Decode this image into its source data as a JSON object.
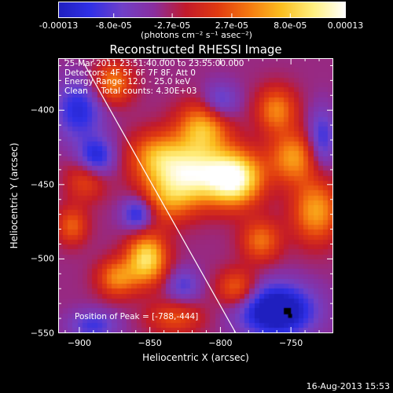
{
  "colorbar": {
    "tick_labels": [
      "-0.00013",
      "-8.0e-05",
      "-2.7e-05",
      "2.7e-05",
      "8.0e-05",
      "0.00013"
    ],
    "tick_values": [
      -0.00013,
      -8e-05,
      -2.7e-05,
      2.7e-05,
      8e-05,
      0.00013
    ],
    "units_label": "(photons cm⁻² s⁻¹ asec⁻²)",
    "colors": [
      "#1f1fbf",
      "#3030e6",
      "#7040c8",
      "#8a2e9e",
      "#c21a2a",
      "#e03a10",
      "#f57a10",
      "#fbbf20",
      "#fff080",
      "#ffffff"
    ]
  },
  "chart_data": {
    "type": "heatmap",
    "title": "Reconstructed RHESSI Image",
    "xlabel": "Heliocentric X (arcsec)",
    "ylabel": "Heliocentric Y (arcsec)",
    "xlim": [
      -915,
      -720
    ],
    "ylim": [
      -550,
      -365
    ],
    "x_ticks": [
      -900,
      -850,
      -800,
      -750
    ],
    "y_ticks": [
      -400,
      -450,
      -500,
      -550
    ],
    "x_tick_labels": [
      "−900",
      "−850",
      "−800",
      "−750"
    ],
    "y_tick_labels": [
      "−400",
      "−450",
      "−500",
      "−550"
    ],
    "info_lines": [
      "25-Mar-2011 23:51:40.000 to 23:55:00.000",
      "Detectors: 4F 5F 6F 7F 8F, Att 0",
      "Energy Range: 12.0 - 25.0 keV",
      "Clean     Total counts: 4.30E+03"
    ],
    "peak_label": "Position of Peak = [-788,-444]",
    "peak_position": [
      -788,
      -444
    ],
    "limb_line": [
      [
        -897,
        -368
      ],
      [
        -789,
        -550
      ]
    ],
    "sources": [
      {
        "x": -790,
        "y": -446,
        "amp": 1.0,
        "sx": 14,
        "sy": 13
      },
      {
        "x": -820,
        "y": -443,
        "amp": 0.75,
        "sx": 16,
        "sy": 14
      },
      {
        "x": -812,
        "y": -412,
        "amp": 0.62,
        "sx": 13,
        "sy": 12
      },
      {
        "x": -845,
        "y": -432,
        "amp": 0.55,
        "sx": 14,
        "sy": 12
      },
      {
        "x": -838,
        "y": -460,
        "amp": 0.42,
        "sx": 14,
        "sy": 12
      },
      {
        "x": -852,
        "y": -500,
        "amp": 0.78,
        "sx": 10,
        "sy": 12
      },
      {
        "x": -873,
        "y": -513,
        "amp": 0.5,
        "sx": 10,
        "sy": 9
      },
      {
        "x": -876,
        "y": -382,
        "amp": 0.5,
        "sx": 10,
        "sy": 10
      },
      {
        "x": -748,
        "y": -432,
        "amp": 0.55,
        "sx": 12,
        "sy": 12
      },
      {
        "x": -732,
        "y": -468,
        "amp": 0.58,
        "sx": 12,
        "sy": 15
      },
      {
        "x": -760,
        "y": -400,
        "amp": 0.5,
        "sx": 10,
        "sy": 11
      },
      {
        "x": -771,
        "y": -488,
        "amp": 0.45,
        "sx": 10,
        "sy": 10
      },
      {
        "x": -788,
        "y": -520,
        "amp": 0.45,
        "sx": 10,
        "sy": 9
      },
      {
        "x": -832,
        "y": -540,
        "amp": 0.35,
        "sx": 14,
        "sy": 8
      },
      {
        "x": -895,
        "y": -447,
        "amp": 0.35,
        "sx": 10,
        "sy": 10
      },
      {
        "x": -905,
        "y": -478,
        "amp": 0.4,
        "sx": 8,
        "sy": 9
      },
      {
        "x": -858,
        "y": -470,
        "amp": -0.5,
        "sx": 8,
        "sy": 8
      },
      {
        "x": -760,
        "y": -535,
        "amp": -0.8,
        "sx": 18,
        "sy": 12
      },
      {
        "x": -900,
        "y": -400,
        "amp": -0.45,
        "sx": 12,
        "sy": 14
      },
      {
        "x": -888,
        "y": -432,
        "amp": -0.5,
        "sx": 9,
        "sy": 9
      },
      {
        "x": -728,
        "y": -420,
        "amp": -0.4,
        "sx": 7,
        "sy": 14
      },
      {
        "x": -800,
        "y": -395,
        "amp": -0.35,
        "sx": 9,
        "sy": 9
      },
      {
        "x": -890,
        "y": -545,
        "amp": -0.35,
        "sx": 12,
        "sy": 7
      },
      {
        "x": -826,
        "y": -518,
        "amp": -0.3,
        "sx": 8,
        "sy": 8
      }
    ]
  },
  "footer": {
    "timestamp": "16-Aug-2013 15:53"
  }
}
